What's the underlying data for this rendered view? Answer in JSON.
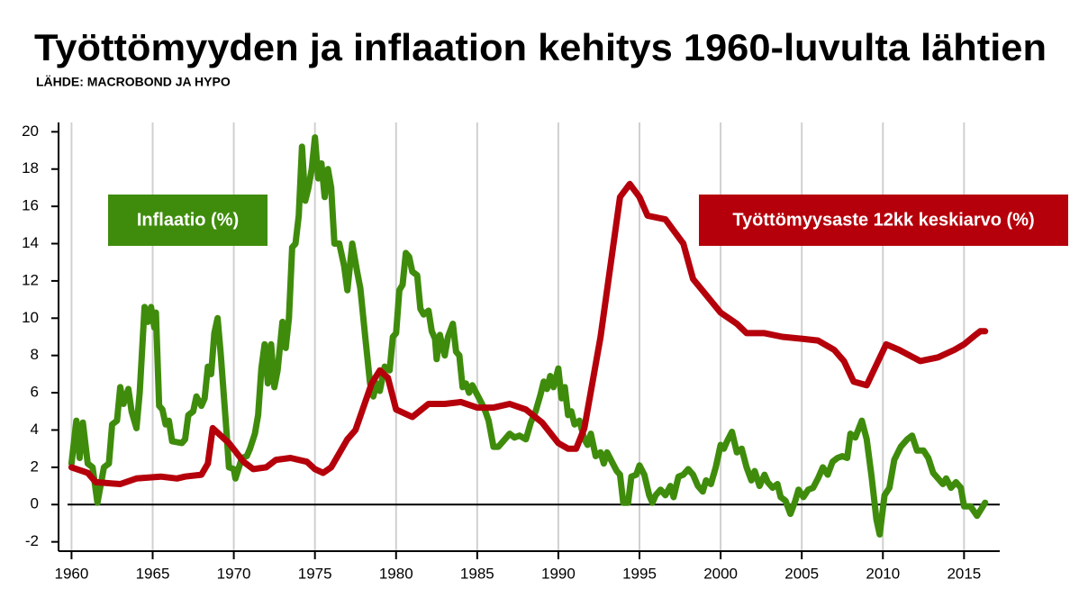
{
  "chart_data": {
    "type": "line",
    "title": "Työttömyyden ja inflaation kehitys 1960-luvulta lähtien",
    "subtitle": "LÄHDE: MACROBOND JA HYPO",
    "xlim": [
      1959.2,
      2017.2
    ],
    "ylim": [
      -2.5,
      20.5
    ],
    "xticks": [
      1960,
      1965,
      1970,
      1975,
      1980,
      1985,
      1990,
      1995,
      2000,
      2005,
      2010,
      2015
    ],
    "yticks": [
      -2,
      0,
      2,
      4,
      6,
      8,
      10,
      12,
      14,
      16,
      18,
      20
    ],
    "grid": true,
    "series": [
      {
        "name": "Inflaatio (%)",
        "color": "#3f8c0c",
        "x": [
          1960.0,
          1960.3,
          1960.5,
          1960.7,
          1961.0,
          1961.3,
          1961.6,
          1962.0,
          1962.3,
          1962.5,
          1962.8,
          1963.0,
          1963.2,
          1963.5,
          1963.7,
          1964.0,
          1964.2,
          1964.5,
          1964.7,
          1964.9,
          1965.1,
          1965.2,
          1965.4,
          1965.6,
          1965.8,
          1966.0,
          1966.2,
          1966.8,
          1967.0,
          1967.2,
          1967.5,
          1967.7,
          1968.0,
          1968.2,
          1968.4,
          1968.6,
          1968.8,
          1969.0,
          1969.2,
          1969.5,
          1969.7,
          1970.0,
          1970.1,
          1970.5,
          1970.8,
          1971.0,
          1971.3,
          1971.5,
          1971.7,
          1971.9,
          1972.1,
          1972.3,
          1972.5,
          1972.7,
          1973.0,
          1973.2,
          1973.4,
          1973.6,
          1973.8,
          1974.0,
          1974.2,
          1974.4,
          1974.6,
          1974.8,
          1975.0,
          1975.2,
          1975.4,
          1975.6,
          1975.8,
          1976.0,
          1976.2,
          1976.5,
          1976.8,
          1977.0,
          1977.3,
          1977.6,
          1977.8,
          1978.1,
          1978.4,
          1978.6,
          1978.8,
          1979.0,
          1979.3,
          1979.6,
          1979.8,
          1980.0,
          1980.2,
          1980.4,
          1980.6,
          1980.8,
          1981.0,
          1981.3,
          1981.5,
          1981.7,
          1982.0,
          1982.2,
          1982.4,
          1982.5,
          1982.7,
          1983.0,
          1983.2,
          1983.5,
          1983.7,
          1983.9,
          1984.1,
          1984.3,
          1984.5,
          1984.7,
          1985.0,
          1985.3,
          1985.5,
          1985.7,
          1986.0,
          1986.3,
          1986.6,
          1987.0,
          1987.3,
          1987.6,
          1988.0,
          1988.3,
          1988.6,
          1988.9,
          1989.1,
          1989.3,
          1989.5,
          1989.7,
          1990.0,
          1990.2,
          1990.4,
          1990.6,
          1990.8,
          1991.0,
          1991.3,
          1991.6,
          1991.8,
          1992.0,
          1992.3,
          1992.6,
          1992.8,
          1993.0,
          1993.3,
          1993.6,
          1993.8,
          1994.0,
          1994.3,
          1994.5,
          1994.8,
          1995.0,
          1995.3,
          1995.6,
          1995.8,
          1996.0,
          1996.3,
          1996.6,
          1996.9,
          1997.1,
          1997.4,
          1997.7,
          1998.0,
          1998.3,
          1998.6,
          1998.9,
          1999.1,
          1999.4,
          1999.7,
          2000.0,
          2000.2,
          2000.4,
          2000.7,
          2001.0,
          2001.3,
          2001.6,
          2001.9,
          2002.1,
          2002.4,
          2002.7,
          2002.9,
          2003.2,
          2003.5,
          2003.7,
          2004.0,
          2004.3,
          2004.6,
          2004.8,
          2005.1,
          2005.4,
          2005.7,
          2006.0,
          2006.3,
          2006.6,
          2006.9,
          2007.2,
          2007.5,
          2007.8,
          2008.0,
          2008.3,
          2008.7,
          2009.0,
          2009.3,
          2009.6,
          2009.8,
          2010.1,
          2010.4,
          2010.7,
          2011.1,
          2011.5,
          2011.8,
          2012.1,
          2012.5,
          2012.8,
          2013.1,
          2013.4,
          2013.7,
          2013.9,
          2014.2,
          2014.5,
          2014.8,
          2015.0,
          2015.4,
          2015.8,
          2016.3
        ],
        "values": [
          2.2,
          4.5,
          2.5,
          4.4,
          2.2,
          2.0,
          0.1,
          2.0,
          2.2,
          4.3,
          4.5,
          6.3,
          5.4,
          6.2,
          5.0,
          4.1,
          6.0,
          10.6,
          9.8,
          10.6,
          9.5,
          10.3,
          5.3,
          5.1,
          4.3,
          4.5,
          3.4,
          3.3,
          3.5,
          4.8,
          5.0,
          5.8,
          5.3,
          5.7,
          7.4,
          7.0,
          9.2,
          10.0,
          8.0,
          4.5,
          2.0,
          1.9,
          1.4,
          2.5,
          2.6,
          3.0,
          3.8,
          4.8,
          7.3,
          8.6,
          6.5,
          8.6,
          6.3,
          7.2,
          9.8,
          8.4,
          10.0,
          13.8,
          14.0,
          15.5,
          19.2,
          16.3,
          17.0,
          18.0,
          19.7,
          17.5,
          18.3,
          16.5,
          18.0,
          17.0,
          14.0,
          14.0,
          12.8,
          11.5,
          14.0,
          12.5,
          11.6,
          9.0,
          6.5,
          5.8,
          6.5,
          6.1,
          7.4,
          7.2,
          9.0,
          9.2,
          11.5,
          11.8,
          13.5,
          13.3,
          12.5,
          12.3,
          10.5,
          10.2,
          10.4,
          9.3,
          8.9,
          7.8,
          9.1,
          8.0,
          9.0,
          9.7,
          8.2,
          8.0,
          6.3,
          6.5,
          6.0,
          6.4,
          5.9,
          5.4,
          5.0,
          4.5,
          3.1,
          3.1,
          3.4,
          3.8,
          3.6,
          3.7,
          3.5,
          4.4,
          5.0,
          5.9,
          6.6,
          6.2,
          6.9,
          6.3,
          7.3,
          5.7,
          6.3,
          4.8,
          5.0,
          4.3,
          4.5,
          3.5,
          3.2,
          3.8,
          2.6,
          2.8,
          2.2,
          2.8,
          2.3,
          1.8,
          1.6,
          0.1,
          0.1,
          1.5,
          1.6,
          2.1,
          1.6,
          0.5,
          0.1,
          0.5,
          0.8,
          0.5,
          1.0,
          0.4,
          1.5,
          1.6,
          1.9,
          1.6,
          1.0,
          0.7,
          1.3,
          1.1,
          2.0,
          3.2,
          3.0,
          3.4,
          3.9,
          2.8,
          3.0,
          2.0,
          1.3,
          1.8,
          1.0,
          1.6,
          1.2,
          0.9,
          1.1,
          0.4,
          0.2,
          -0.5,
          0.2,
          0.8,
          0.4,
          0.8,
          0.9,
          1.4,
          2.0,
          1.6,
          2.3,
          2.5,
          2.6,
          2.5,
          3.8,
          3.6,
          4.5,
          3.5,
          1.5,
          -0.8,
          -1.6,
          0.5,
          0.9,
          2.4,
          3.1,
          3.5,
          3.7,
          2.9,
          2.9,
          2.5,
          1.7,
          1.4,
          1.1,
          1.4,
          0.9,
          1.2,
          0.9,
          -0.1,
          -0.1,
          -0.6,
          0.1
        ]
      },
      {
        "name": "Työttömyysaste 12kk keskiarvo (%)",
        "color": "#b5000b",
        "x": [
          1960.0,
          1961.0,
          1961.5,
          1963.0,
          1964.0,
          1965.5,
          1966.5,
          1967.0,
          1968.0,
          1968.4,
          1968.7,
          1969.7,
          1970.6,
          1971.2,
          1972.0,
          1972.6,
          1973.5,
          1974.5,
          1975.0,
          1975.5,
          1976.0,
          1977.0,
          1977.5,
          1978.5,
          1979.0,
          1979.5,
          1980.0,
          1981.0,
          1982.0,
          1983.0,
          1984.0,
          1985.0,
          1986.0,
          1987.0,
          1988.0,
          1989.0,
          1990.0,
          1990.6,
          1991.1,
          1991.6,
          1992.6,
          1993.8,
          1994.4,
          1995.0,
          1995.5,
          1996.6,
          1997.7,
          1998.3,
          2000.0,
          2001.0,
          2001.6,
          2002.7,
          2003.8,
          2005.0,
          2006.0,
          2007.0,
          2007.6,
          2008.2,
          2009.0,
          2010.2,
          2011.0,
          2012.3,
          2013.4,
          2014.4,
          2015.0,
          2015.7,
          2016.0,
          2016.3
        ],
        "values": [
          2.0,
          1.7,
          1.2,
          1.1,
          1.4,
          1.5,
          1.4,
          1.5,
          1.6,
          2.2,
          4.1,
          3.3,
          2.3,
          1.9,
          2.0,
          2.4,
          2.5,
          2.3,
          1.9,
          1.7,
          2.0,
          3.5,
          4.0,
          6.5,
          7.2,
          6.8,
          5.1,
          4.7,
          5.4,
          5.4,
          5.5,
          5.2,
          5.2,
          5.4,
          5.1,
          4.4,
          3.3,
          3.0,
          3.0,
          4.1,
          9.0,
          16.5,
          17.2,
          16.5,
          15.5,
          15.3,
          14.0,
          12.1,
          10.3,
          9.7,
          9.2,
          9.2,
          9.0,
          8.9,
          8.8,
          8.3,
          7.7,
          6.6,
          6.4,
          8.6,
          8.3,
          7.7,
          7.9,
          8.3,
          8.6,
          9.1,
          9.3,
          9.3
        ]
      }
    ]
  }
}
